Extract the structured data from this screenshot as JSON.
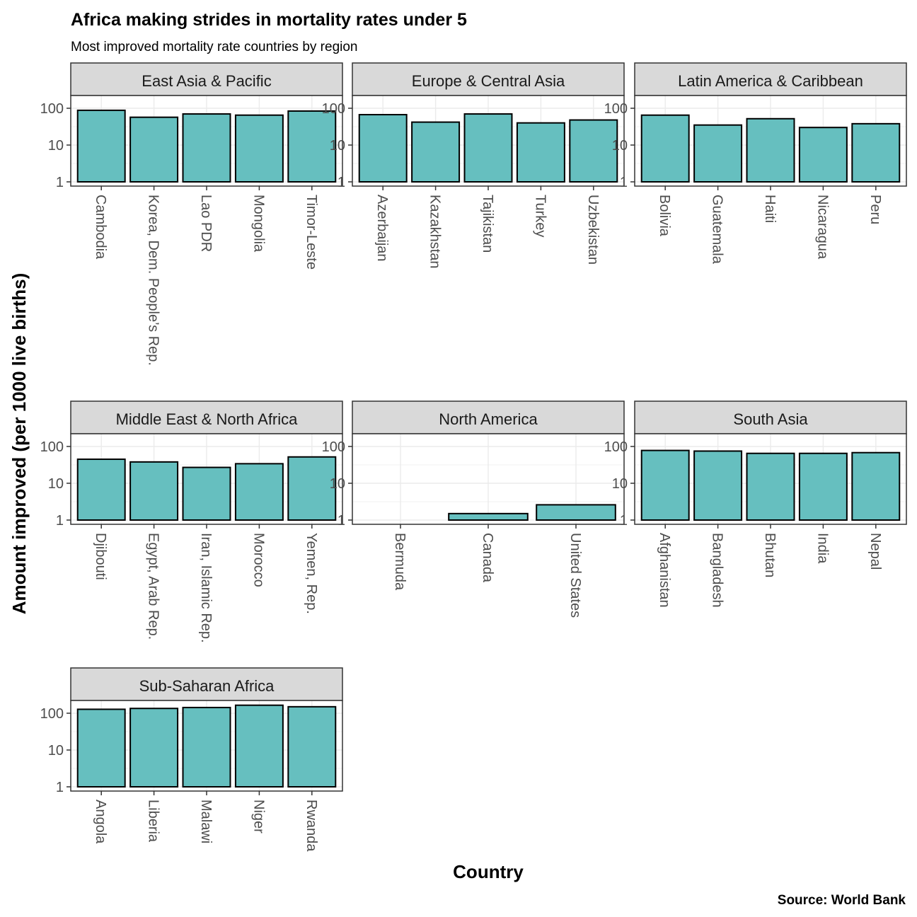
{
  "chart_data": {
    "type": "bar",
    "title": "Africa making strides in mortality rates under 5",
    "subtitle": "Most improved mortality rate countries by region",
    "xlabel": "Country",
    "ylabel": "Amount improved (per 1000 live births)",
    "caption": "Source: World Bank",
    "y_scale": "log10",
    "ylim": [
      1,
      200
    ],
    "y_ticks": [
      1,
      10,
      100
    ],
    "y_tick_labels": [
      "1",
      "10",
      "100"
    ],
    "grid": true,
    "bar_color": "#66bfbf",
    "bar_outline": "#000000",
    "strip_fill": "#d9d9d9",
    "facets": [
      {
        "region": "East Asia & Pacific",
        "categories": [
          "Cambodia",
          "Korea, Dem. People’s Rep.",
          "Lao PDR",
          "Mongolia",
          "Timor-Leste"
        ],
        "values": [
          88,
          57,
          70,
          65,
          84
        ]
      },
      {
        "region": "Europe & Central Asia",
        "categories": [
          "Azerbaijan",
          "Kazakhstan",
          "Tajikistan",
          "Turkey",
          "Uzbekistan"
        ],
        "values": [
          67,
          42,
          70,
          40,
          48
        ]
      },
      {
        "region": "Latin America & Caribbean",
        "categories": [
          "Bolivia",
          "Guatemala",
          "Haiti",
          "Nicaragua",
          "Peru"
        ],
        "values": [
          65,
          35,
          52,
          30,
          38
        ]
      },
      {
        "region": "Middle East & North Africa",
        "categories": [
          "Djibouti",
          "Egypt, Arab Rep.",
          "Iran, Islamic Rep.",
          "Morocco",
          "Yemen, Rep."
        ],
        "values": [
          45,
          38,
          27,
          34,
          52
        ]
      },
      {
        "region": "North America",
        "categories": [
          "Bermuda",
          "Canada",
          "United States"
        ],
        "values": [
          1,
          1.5,
          2.6
        ]
      },
      {
        "region": "South Asia",
        "categories": [
          "Afghanistan",
          "Bangladesh",
          "Bhutan",
          "India",
          "Nepal"
        ],
        "values": [
          78,
          75,
          65,
          65,
          68
        ]
      },
      {
        "region": "Sub-Saharan Africa",
        "categories": [
          "Angola",
          "Liberia",
          "Malawi",
          "Niger",
          "Rwanda"
        ],
        "values": [
          128,
          135,
          143,
          165,
          150
        ]
      }
    ]
  }
}
